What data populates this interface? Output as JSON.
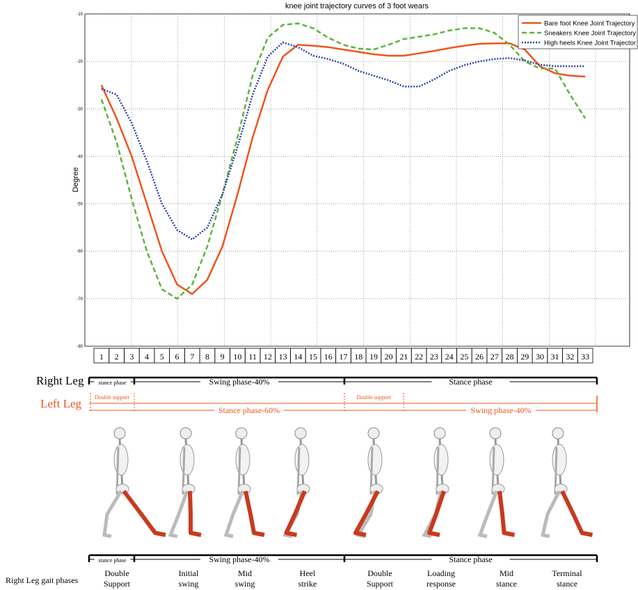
{
  "chart_data": {
    "type": "line",
    "title": "knee joint trajectory curves of 3 foot wears",
    "y_label": "Degree",
    "categories": [
      "1",
      "2",
      "3",
      "4",
      "5",
      "6",
      "7",
      "8",
      "9",
      "10",
      "11",
      "12",
      "13",
      "14",
      "15",
      "16",
      "17",
      "18",
      "19",
      "20",
      "21",
      "22",
      "23",
      "24",
      "25",
      "26",
      "27",
      "28",
      "29",
      "30",
      "31",
      "32",
      "33"
    ],
    "series": [
      {
        "name": "Bare foot Knee Joint Trajectory",
        "color": "#f0541e",
        "style": "solid",
        "values": [
          -25,
          -32,
          -40,
          -50,
          -60,
          -67,
          -69,
          -66,
          -59,
          -48,
          -36,
          -26,
          -19,
          -16.5,
          -16.7,
          -17,
          -17.5,
          -18,
          -18.5,
          -18.8,
          -18.8,
          -18.3,
          -17.8,
          -17.2,
          -16.7,
          -16.3,
          -16.2,
          -16.2,
          -17.5,
          -21,
          -22.5,
          -23,
          -23.2
        ]
      },
      {
        "name": "Sneakers Knee Joint Trajectory",
        "color": "#5bb43c",
        "style": "dashed",
        "values": [
          -28,
          -37,
          -49,
          -60,
          -68,
          -70,
          -67,
          -59,
          -48,
          -36,
          -23,
          -15,
          -12.3,
          -12,
          -13,
          -15,
          -16.5,
          -17.3,
          -17.5,
          -16.5,
          -15.3,
          -14.8,
          -14.3,
          -13.5,
          -13,
          -13,
          -14,
          -16.5,
          -20,
          -21.5,
          -21.5,
          -27,
          -32
        ]
      },
      {
        "name": "High heels Knee Joint Trajector",
        "color": "#2a3fa8",
        "style": "dotted",
        "values": [
          -25.8,
          -27,
          -33,
          -41,
          -50,
          -55.5,
          -57.5,
          -55,
          -48,
          -38,
          -27,
          -19,
          -16,
          -17,
          -18.8,
          -19.5,
          -20.5,
          -22,
          -23,
          -24,
          -25.3,
          -25.3,
          -23.8,
          -22,
          -20.8,
          -20,
          -19.5,
          -19.3,
          -19.8,
          -20.7,
          -21,
          -21,
          -21
        ]
      }
    ],
    "ylim": [
      -80,
      -10
    ],
    "yticks": [
      -80,
      -70,
      -60,
      -50,
      -40,
      -30,
      -20,
      -10
    ],
    "grid": true,
    "legend": "top-right"
  },
  "gait": {
    "right_leg": "Right Leg",
    "left_leg": "Left Leg",
    "right_phases": [
      "stance phase",
      "Swing phase-40%",
      "Stance phase"
    ],
    "left_double": [
      "Double support",
      "Double support"
    ],
    "left_phases": [
      "Stance phase-60%",
      "Swing phase-40%"
    ],
    "bottom_phases": [
      "stance phase",
      "Swing phase-40%",
      "Stance phase"
    ],
    "phases_label": "Right Leg gait phases",
    "phase_names": [
      [
        "Double",
        "Support"
      ],
      [
        "Initial",
        "swing"
      ],
      [
        "Mid",
        "swing"
      ],
      [
        "Heel",
        "strike"
      ],
      [
        "Double",
        "Support"
      ],
      [
        "Loading",
        "response"
      ],
      [
        "Mid",
        "stance"
      ],
      [
        "Terminal",
        "stance"
      ]
    ]
  }
}
